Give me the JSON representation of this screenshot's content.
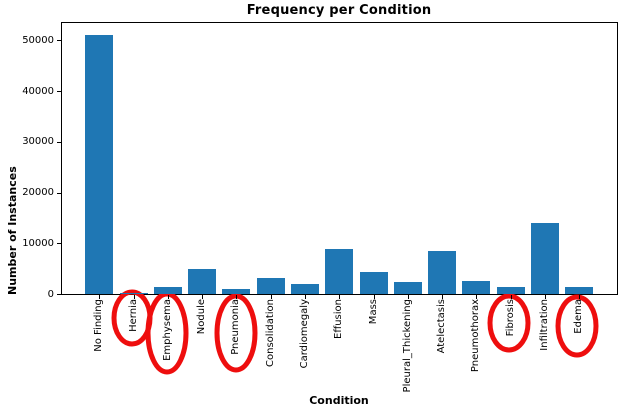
{
  "chart_data": {
    "type": "bar",
    "title": "Frequency per Condition",
    "xlabel": "Condition",
    "ylabel": "Number of Instances",
    "categories": [
      "No Finding",
      "Hernia",
      "Emphysema",
      "Nodule",
      "Pneumonia",
      "Consolidation",
      "Cardiomegaly",
      "Effusion",
      "Mass",
      "Pleural_Thickening",
      "Atelectasis",
      "Pneumothorax",
      "Fibrosis",
      "Infiltration",
      "Edema"
    ],
    "values": [
      51000,
      250,
      1450,
      4900,
      900,
      3200,
      1950,
      8900,
      4300,
      2350,
      8400,
      2600,
      1400,
      14000,
      1450
    ],
    "ylim": [
      0,
      53600
    ],
    "yticks": [
      0,
      10000,
      20000,
      30000,
      40000,
      50000
    ],
    "grid": false,
    "legend": "none",
    "bar_color": "#1f77b4",
    "annotations": {
      "style": "hand-drawn red ellipses circling x tick labels",
      "color": "#ee0e0e",
      "circled_categories": [
        "Hernia",
        "Emphysema",
        "Pneumonia",
        "Fibrosis",
        "Edema"
      ]
    }
  }
}
